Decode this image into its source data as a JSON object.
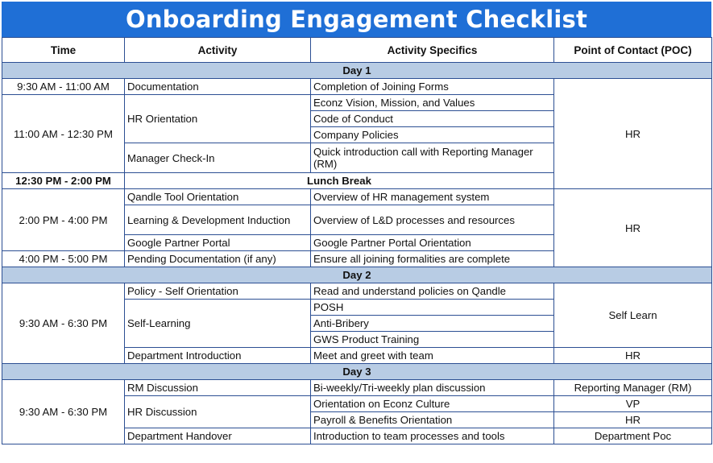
{
  "title": "Onboarding Engagement Checklist",
  "headers": [
    "Time",
    "Activity",
    "Activity Specifics",
    "Point of Contact (POC)"
  ],
  "day1": {
    "label": "Day 1",
    "t1": "9:30 AM - 11:00 AM",
    "t2": "11:00 AM - 12:30 PM",
    "a_documentation": "Documentation",
    "a_hr_orientation": "HR Orientation",
    "a_manager_checkin": "Manager Check-In",
    "s_joining_forms": "Completion of Joining Forms",
    "s_vision": "Econz Vision, Mission, and Values",
    "s_conduct": "Code of Conduct",
    "s_policies": "Company Policies",
    "s_rm_call": "Quick introduction call with Reporting Manager (RM)",
    "poc_morning": "HR",
    "lunch_time": "12:30 PM - 2:00 PM",
    "lunch_label": "Lunch Break",
    "t3": "2:00 PM - 4:00 PM",
    "t4": "4:00 PM - 5:00 PM",
    "a_qandle": "Qandle Tool Orientation",
    "a_ld": "Learning & Development Induction",
    "a_google": "Google Partner Portal",
    "a_pending": "Pending Documentation (if any)",
    "s_hr_system": "Overview of HR management system",
    "s_ld": "Overview of L&D processes and resources",
    "s_google": "Google Partner Portal Orientation",
    "s_formalities": "Ensure all joining formalities are complete",
    "poc_afternoon": "HR"
  },
  "day2": {
    "label": "Day 2",
    "time": "9:30 AM - 6:30 PM",
    "a_policy": "Policy - Self Orientation",
    "a_self": "Self-Learning",
    "a_dept": "Department Introduction",
    "s_qandle": "Read and understand policies on Qandle",
    "s_posh": "POSH",
    "s_bribery": "Anti-Bribery",
    "s_gws": "GWS Product Training",
    "s_meet": "Meet and greet with team",
    "poc_self": "Self Learn",
    "poc_dept": "HR"
  },
  "day3": {
    "label": "Day 3",
    "time": "9:30 AM - 6:30 PM",
    "a_rm": "RM Discussion",
    "a_hr": "HR Discussion",
    "a_handover": "Department Handover",
    "s_plan": "Bi-weekly/Tri-weekly plan discussion",
    "s_culture": "Orientation on Econz Culture",
    "s_payroll": "Payroll & Benefits Orientation",
    "s_processes": "Introduction to team processes and tools",
    "poc_rm": "Reporting Manager (RM)",
    "poc_vp": "VP",
    "poc_hr": "HR",
    "poc_dept": "Department Poc"
  }
}
